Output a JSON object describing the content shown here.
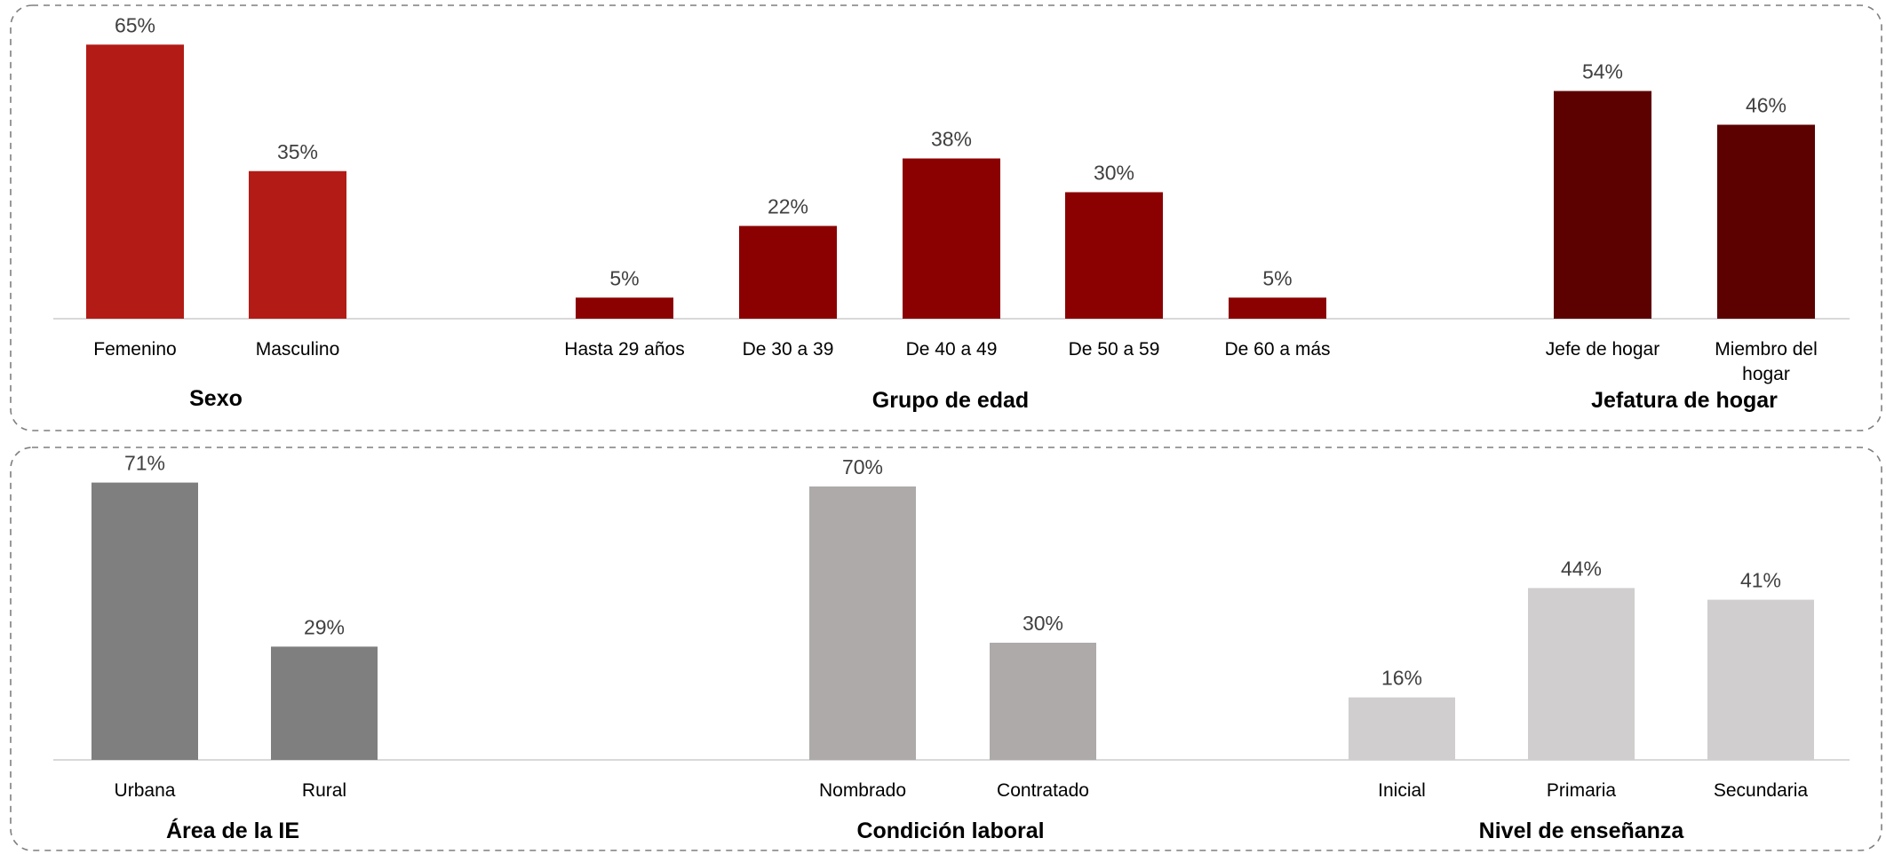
{
  "chart_data": [
    {
      "type": "bar",
      "title": "Sexo",
      "categories": [
        "Femenino",
        "Masculino"
      ],
      "values": [
        65,
        35
      ],
      "value_labels": [
        "65%",
        "35%"
      ],
      "unit": "%",
      "color": "#b31b16"
    },
    {
      "type": "bar",
      "title": "Grupo de edad",
      "categories": [
        "Hasta 29 años",
        "De 30 a 39",
        "De 40 a 49",
        "De 50 a 59",
        "De 60 a más"
      ],
      "values": [
        5,
        22,
        38,
        30,
        5
      ],
      "value_labels": [
        "5%",
        "22%",
        "38%",
        "30%",
        "5%"
      ],
      "unit": "%",
      "color": "#8b0000"
    },
    {
      "type": "bar",
      "title": "Jefatura de hogar",
      "categories": [
        "Jefe de hogar",
        "Miembro del hogar"
      ],
      "values": [
        54,
        46
      ],
      "value_labels": [
        "54%",
        "46%"
      ],
      "unit": "%",
      "color": "#5c0000"
    },
    {
      "type": "bar",
      "title": "Área de la IE",
      "categories": [
        "Urbana",
        "Rural"
      ],
      "values": [
        71,
        29
      ],
      "value_labels": [
        "71%",
        "29%"
      ],
      "unit": "%",
      "color": "#7f7f7f"
    },
    {
      "type": "bar",
      "title": "Condición laboral",
      "categories": [
        "Nombrado",
        "Contratado"
      ],
      "values": [
        70,
        30
      ],
      "value_labels": [
        "70%",
        "30%"
      ],
      "unit": "%",
      "color": "#aeaaaa"
    },
    {
      "type": "bar",
      "title": "Nivel de enseñanza",
      "categories": [
        "Inicial",
        "Primaria",
        "Secundaria"
      ],
      "values": [
        16,
        44,
        41
      ],
      "value_labels": [
        "16%",
        "44%",
        "41%"
      ],
      "unit": "%",
      "color": "#d0cece"
    }
  ]
}
